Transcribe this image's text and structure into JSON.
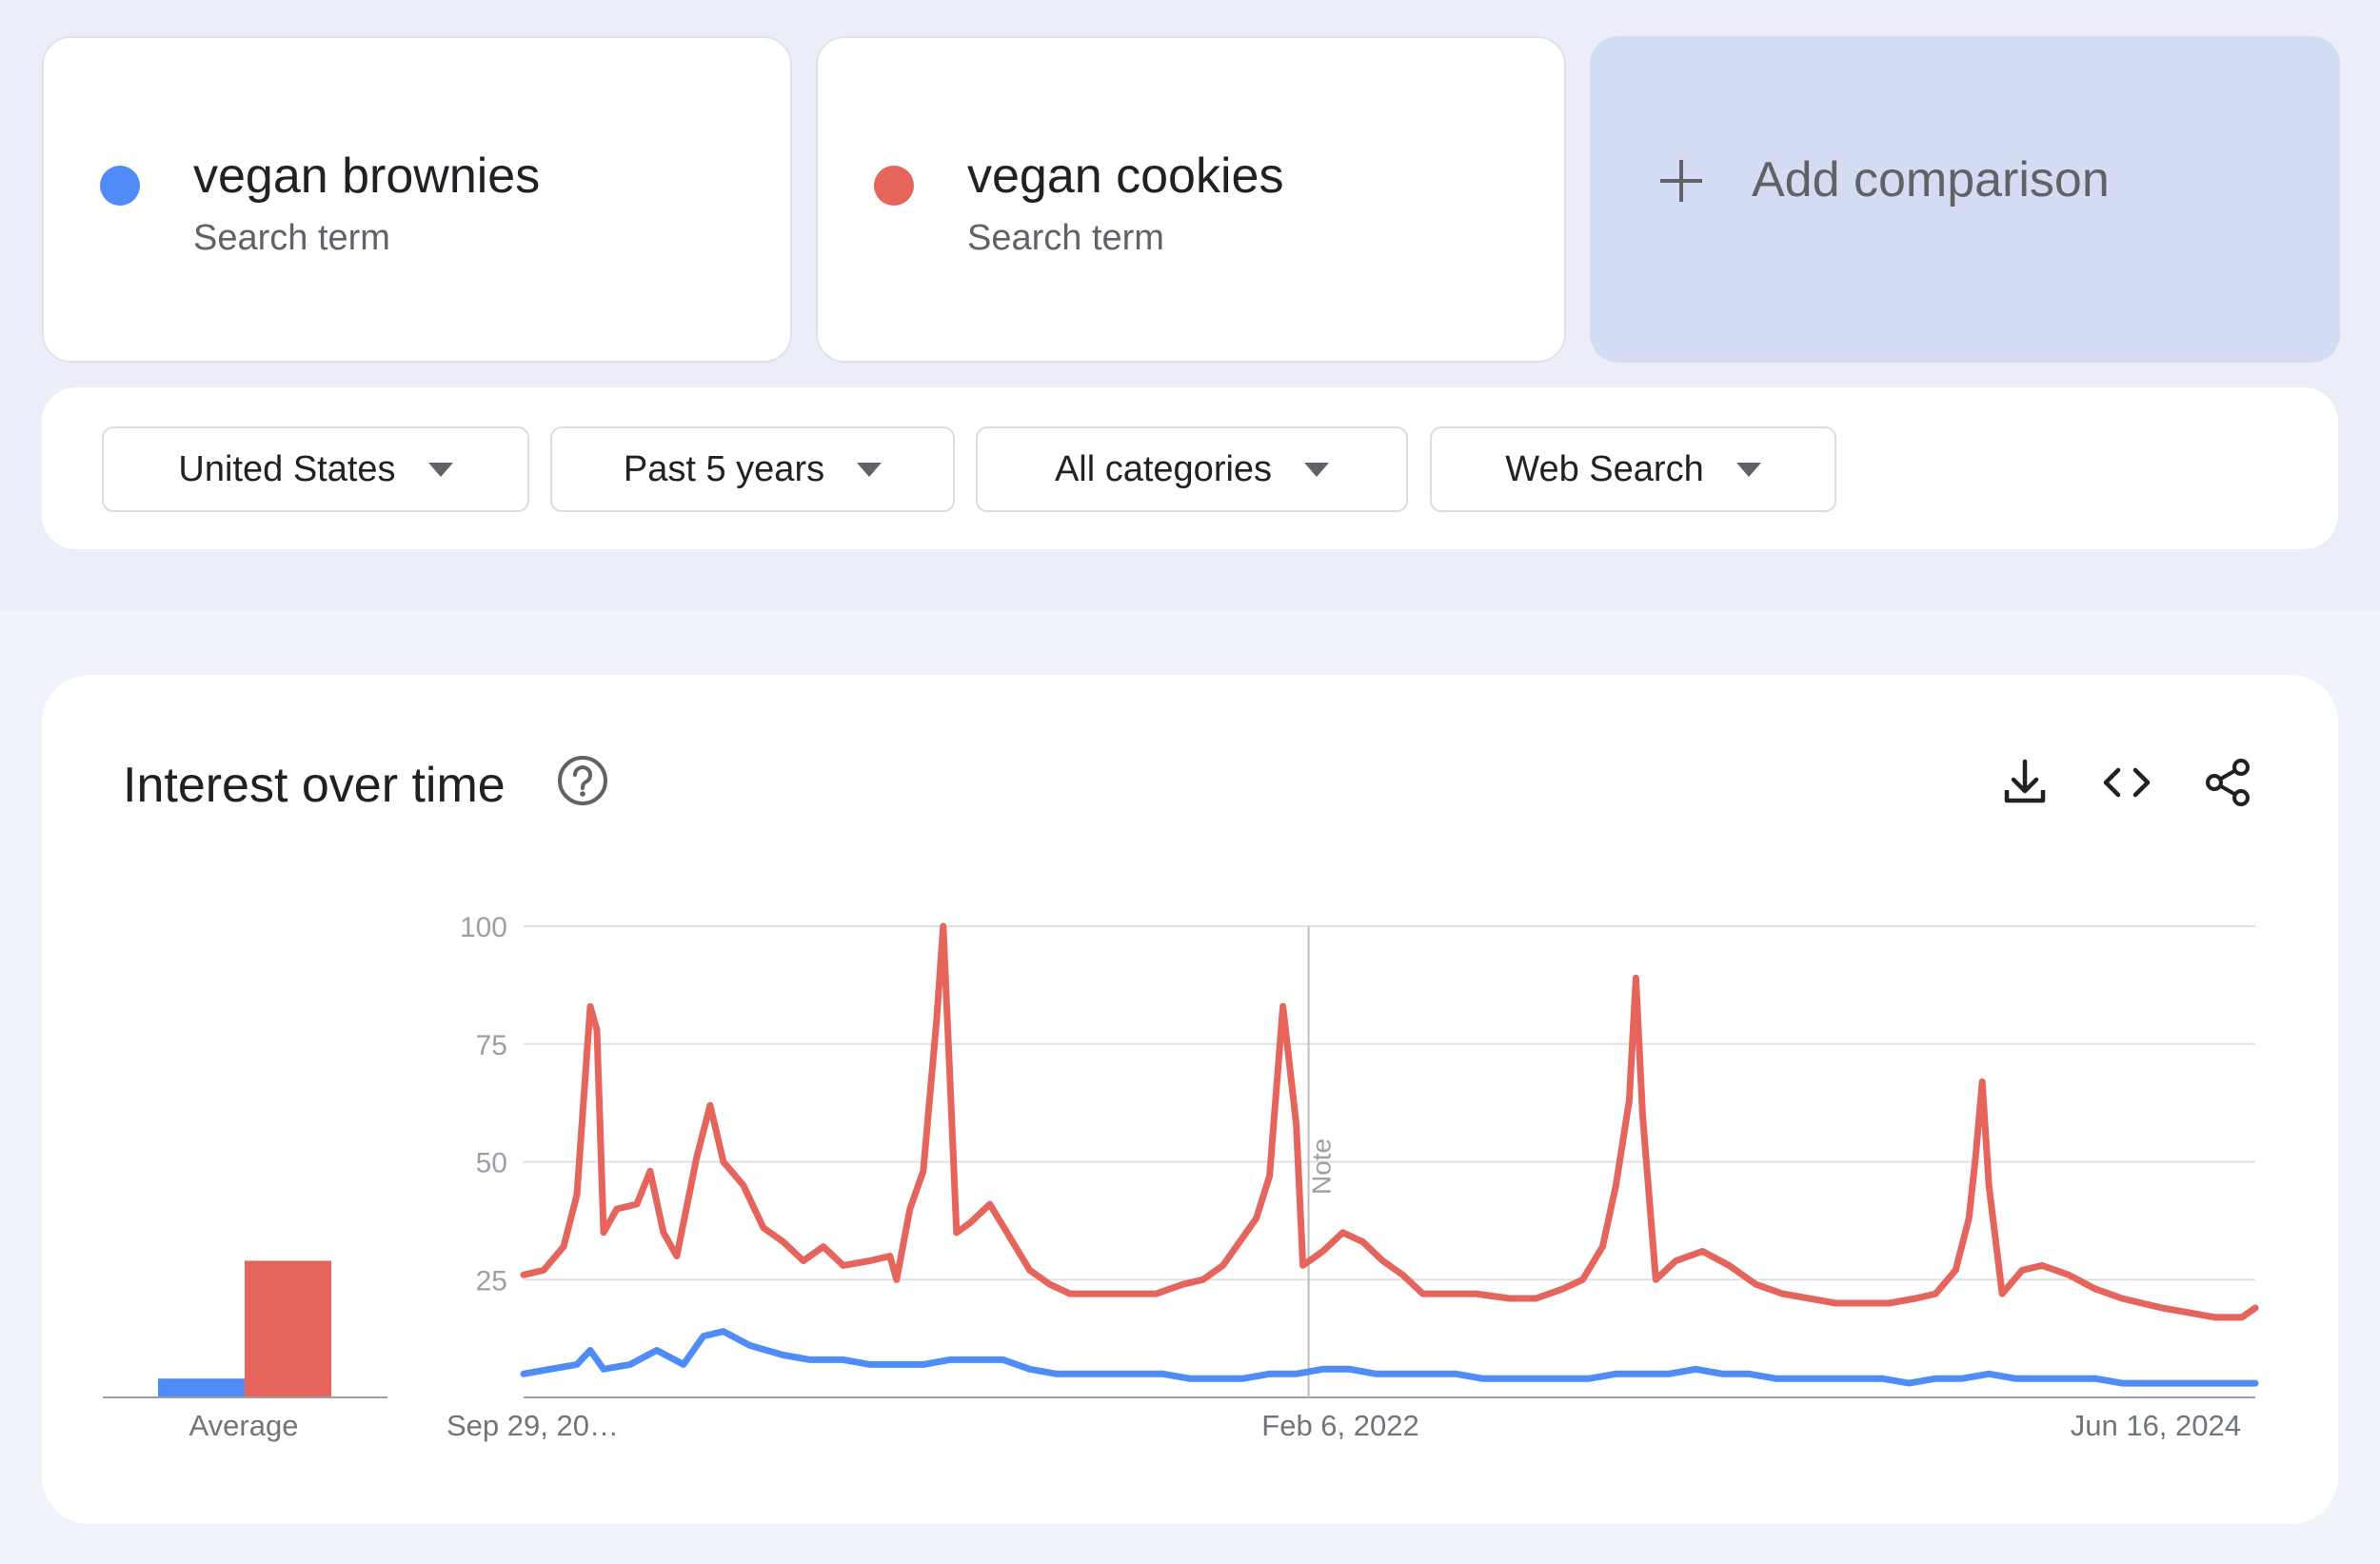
{
  "terms": [
    {
      "name": "vegan brownies",
      "subtitle": "Search term",
      "color": "#4f8cf7"
    },
    {
      "name": "vegan cookies",
      "subtitle": "Search term",
      "color": "#e5645b"
    }
  ],
  "add_comparison": {
    "label": "Add comparison",
    "icon": "plus-icon"
  },
  "filters": [
    {
      "label": "United States",
      "icon": "caret-down-icon"
    },
    {
      "label": "Past 5 years",
      "icon": "caret-down-icon"
    },
    {
      "label": "All categories",
      "icon": "caret-down-icon"
    },
    {
      "label": "Web Search",
      "icon": "caret-down-icon"
    }
  ],
  "interest": {
    "title": "Interest over time",
    "icons": [
      "help-icon",
      "download-icon",
      "embed-code-icon",
      "share-icon"
    ]
  },
  "chart_data": [
    {
      "type": "bar",
      "xlabel": "Average",
      "series": [
        {
          "name": "vegan brownies",
          "color": "#4f8cf7",
          "values": [
            4
          ]
        },
        {
          "name": "vegan cookies",
          "color": "#e5645b",
          "values": [
            29
          ]
        }
      ]
    },
    {
      "type": "line",
      "x_ticks": [
        "Sep 29, 20…",
        "Feb 6, 2022",
        "Jun 16, 2024"
      ],
      "x_range": [
        "2019-09-29",
        "2024-09-22"
      ],
      "y_ticks": [
        "25",
        "50",
        "75",
        "100"
      ],
      "ylim": [
        0,
        100
      ],
      "grid": true,
      "annotation": {
        "label": "Note",
        "date": "2022-01-01"
      },
      "series": [
        {
          "name": "vegan cookies",
          "color": "#e5645b",
          "points": [
            [
              "2019-09-29",
              26
            ],
            [
              "2019-10-20",
              27
            ],
            [
              "2019-11-10",
              32
            ],
            [
              "2019-11-24",
              43
            ],
            [
              "2019-12-08",
              83
            ],
            [
              "2019-12-15",
              78
            ],
            [
              "2019-12-22",
              35
            ],
            [
              "2020-01-05",
              40
            ],
            [
              "2020-01-26",
              41
            ],
            [
              "2020-02-09",
              48
            ],
            [
              "2020-02-23",
              35
            ],
            [
              "2020-03-08",
              30
            ],
            [
              "2020-03-29",
              51
            ],
            [
              "2020-04-12",
              62
            ],
            [
              "2020-04-26",
              50
            ],
            [
              "2020-05-17",
              45
            ],
            [
              "2020-06-07",
              36
            ],
            [
              "2020-06-28",
              33
            ],
            [
              "2020-07-19",
              29
            ],
            [
              "2020-08-09",
              32
            ],
            [
              "2020-08-30",
              28
            ],
            [
              "2020-09-27",
              29
            ],
            [
              "2020-10-18",
              30
            ],
            [
              "2020-10-25",
              25
            ],
            [
              "2020-11-08",
              40
            ],
            [
              "2020-11-22",
              48
            ],
            [
              "2020-12-06",
              80
            ],
            [
              "2020-12-13",
              100
            ],
            [
              "2020-12-20",
              68
            ],
            [
              "2020-12-27",
              35
            ],
            [
              "2021-01-10",
              37
            ],
            [
              "2021-01-31",
              41
            ],
            [
              "2021-02-21",
              34
            ],
            [
              "2021-03-14",
              27
            ],
            [
              "2021-04-04",
              24
            ],
            [
              "2021-04-25",
              22
            ],
            [
              "2021-05-30",
              22
            ],
            [
              "2021-06-27",
              22
            ],
            [
              "2021-07-25",
              22
            ],
            [
              "2021-08-22",
              24
            ],
            [
              "2021-09-12",
              25
            ],
            [
              "2021-10-03",
              28
            ],
            [
              "2021-10-24",
              34
            ],
            [
              "2021-11-07",
              38
            ],
            [
              "2021-11-21",
              47
            ],
            [
              "2021-12-05",
              83
            ],
            [
              "2021-12-19",
              58
            ],
            [
              "2021-12-26",
              28
            ],
            [
              "2022-01-16",
              31
            ],
            [
              "2022-02-06",
              35
            ],
            [
              "2022-02-27",
              33
            ],
            [
              "2022-03-20",
              29
            ],
            [
              "2022-04-10",
              26
            ],
            [
              "2022-05-01",
              22
            ],
            [
              "2022-05-29",
              22
            ],
            [
              "2022-06-26",
              22
            ],
            [
              "2022-07-31",
              21
            ],
            [
              "2022-08-28",
              21
            ],
            [
              "2022-09-25",
              23
            ],
            [
              "2022-10-16",
              25
            ],
            [
              "2022-11-06",
              32
            ],
            [
              "2022-11-20",
              45
            ],
            [
              "2022-12-04",
              63
            ],
            [
              "2022-12-11",
              89
            ],
            [
              "2022-12-18",
              60
            ],
            [
              "2023-01-01",
              25
            ],
            [
              "2023-01-22",
              29
            ],
            [
              "2023-02-19",
              31
            ],
            [
              "2023-03-19",
              28
            ],
            [
              "2023-04-16",
              24
            ],
            [
              "2023-05-14",
              22
            ],
            [
              "2023-06-11",
              21
            ],
            [
              "2023-07-09",
              20
            ],
            [
              "2023-08-06",
              20
            ],
            [
              "2023-09-03",
              20
            ],
            [
              "2023-10-01",
              21
            ],
            [
              "2023-10-22",
              22
            ],
            [
              "2023-11-12",
              27
            ],
            [
              "2023-11-26",
              38
            ],
            [
              "2023-12-03",
              51
            ],
            [
              "2023-12-10",
              67
            ],
            [
              "2023-12-17",
              45
            ],
            [
              "2023-12-31",
              22
            ],
            [
              "2024-01-21",
              27
            ],
            [
              "2024-02-11",
              28
            ],
            [
              "2024-03-10",
              26
            ],
            [
              "2024-04-07",
              23
            ],
            [
              "2024-05-05",
              21
            ],
            [
              "2024-06-16",
              19
            ],
            [
              "2024-07-14",
              18
            ],
            [
              "2024-08-11",
              17
            ],
            [
              "2024-09-08",
              17
            ],
            [
              "2024-09-22",
              19
            ]
          ]
        },
        {
          "name": "vegan brownies",
          "color": "#4f8cf7",
          "points": [
            [
              "2019-09-29",
              5
            ],
            [
              "2019-10-27",
              6
            ],
            [
              "2019-11-24",
              7
            ],
            [
              "2019-12-08",
              10
            ],
            [
              "2019-12-22",
              6
            ],
            [
              "2020-01-19",
              7
            ],
            [
              "2020-02-16",
              10
            ],
            [
              "2020-03-15",
              7
            ],
            [
              "2020-04-05",
              13
            ],
            [
              "2020-04-26",
              14
            ],
            [
              "2020-05-24",
              11
            ],
            [
              "2020-06-28",
              9
            ],
            [
              "2020-07-26",
              8
            ],
            [
              "2020-08-30",
              8
            ],
            [
              "2020-09-27",
              7
            ],
            [
              "2020-10-25",
              7
            ],
            [
              "2020-11-22",
              7
            ],
            [
              "2020-12-20",
              8
            ],
            [
              "2021-01-17",
              8
            ],
            [
              "2021-02-14",
              8
            ],
            [
              "2021-03-14",
              6
            ],
            [
              "2021-04-11",
              5
            ],
            [
              "2021-05-09",
              5
            ],
            [
              "2021-06-06",
              5
            ],
            [
              "2021-07-04",
              5
            ],
            [
              "2021-08-01",
              5
            ],
            [
              "2021-08-29",
              4
            ],
            [
              "2021-09-26",
              4
            ],
            [
              "2021-10-24",
              4
            ],
            [
              "2021-11-21",
              5
            ],
            [
              "2021-12-19",
              5
            ],
            [
              "2022-01-16",
              6
            ],
            [
              "2022-02-13",
              6
            ],
            [
              "2022-03-13",
              5
            ],
            [
              "2022-04-10",
              5
            ],
            [
              "2022-05-08",
              5
            ],
            [
              "2022-06-05",
              5
            ],
            [
              "2022-07-03",
              4
            ],
            [
              "2022-07-31",
              4
            ],
            [
              "2022-08-28",
              4
            ],
            [
              "2022-09-25",
              4
            ],
            [
              "2022-10-23",
              4
            ],
            [
              "2022-11-20",
              5
            ],
            [
              "2022-12-18",
              5
            ],
            [
              "2023-01-15",
              5
            ],
            [
              "2023-02-12",
              6
            ],
            [
              "2023-03-12",
              5
            ],
            [
              "2023-04-09",
              5
            ],
            [
              "2023-05-07",
              4
            ],
            [
              "2023-06-04",
              4
            ],
            [
              "2023-07-02",
              4
            ],
            [
              "2023-07-30",
              4
            ],
            [
              "2023-08-27",
              4
            ],
            [
              "2023-09-24",
              3
            ],
            [
              "2023-10-22",
              4
            ],
            [
              "2023-11-19",
              4
            ],
            [
              "2023-12-17",
              5
            ],
            [
              "2024-01-14",
              4
            ],
            [
              "2024-02-11",
              4
            ],
            [
              "2024-03-10",
              4
            ],
            [
              "2024-04-07",
              4
            ],
            [
              "2024-05-05",
              3
            ],
            [
              "2024-06-02",
              3
            ],
            [
              "2024-06-30",
              3
            ],
            [
              "2024-07-28",
              3
            ],
            [
              "2024-08-25",
              3
            ],
            [
              "2024-09-22",
              3
            ]
          ]
        }
      ]
    }
  ]
}
